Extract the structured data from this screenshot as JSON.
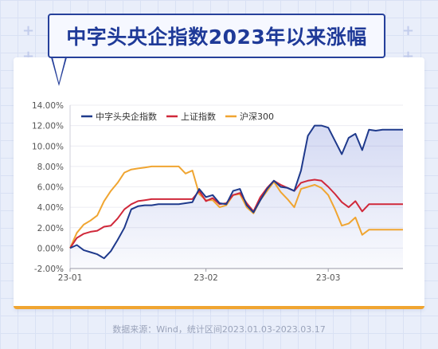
{
  "title": "中字头央企指数2023年以来涨幅",
  "footer": "数据来源：Wind，统计区间2023.01.03-2023.03.17",
  "chart_data": {
    "type": "line",
    "ylim": [
      -2,
      14
    ],
    "yticks": [
      "14.00%",
      "12.00%",
      "10.00%",
      "8.00%",
      "6.00%",
      "4.00%",
      "2.00%",
      "0.00%",
      "-2.00%"
    ],
    "ytick_values": [
      14,
      12,
      10,
      8,
      6,
      4,
      2,
      0,
      -2
    ],
    "xticks": [
      {
        "label": "23-01",
        "x": 0
      },
      {
        "label": "23-02",
        "x": 20
      },
      {
        "label": "23-03",
        "x": 38
      }
    ],
    "x": [
      0,
      1,
      2,
      3,
      4,
      5,
      6,
      7,
      8,
      9,
      10,
      11,
      12,
      13,
      14,
      15,
      16,
      17,
      18,
      19,
      20,
      21,
      22,
      23,
      24,
      25,
      26,
      27,
      28,
      29,
      30,
      31,
      32,
      33,
      34,
      35,
      36,
      37,
      38,
      39,
      40,
      41,
      42,
      43,
      44,
      45,
      46,
      47,
      48,
      49
    ],
    "legend_position": "top-left",
    "series": [
      {
        "name": "中字头央企指数",
        "color": "#1f3a8c",
        "values": [
          0,
          0.3,
          -0.2,
          -0.4,
          -0.6,
          -1.0,
          -0.3,
          0.8,
          2.0,
          3.8,
          4.1,
          4.2,
          4.2,
          4.3,
          4.3,
          4.3,
          4.3,
          4.4,
          4.5,
          5.8,
          5.0,
          5.2,
          4.4,
          4.3,
          5.6,
          5.8,
          4.2,
          3.5,
          4.7,
          5.8,
          6.6,
          6.0,
          5.9,
          5.6,
          7.6,
          11.0,
          12.0,
          12.0,
          11.8,
          10.5,
          9.2,
          10.8,
          11.2,
          9.6,
          11.6,
          11.5,
          11.6,
          11.6,
          11.6,
          11.6
        ]
      },
      {
        "name": "上证指数",
        "color": "#d0283a",
        "values": [
          0,
          1.0,
          1.4,
          1.6,
          1.7,
          2.1,
          2.2,
          2.9,
          3.8,
          4.3,
          4.6,
          4.7,
          4.8,
          4.8,
          4.8,
          4.8,
          4.8,
          4.8,
          4.8,
          5.6,
          4.6,
          4.9,
          4.3,
          4.4,
          5.2,
          5.4,
          4.4,
          3.6,
          5.0,
          5.9,
          6.6,
          6.2,
          5.9,
          5.6,
          6.4,
          6.6,
          6.7,
          6.6,
          6.0,
          5.3,
          4.5,
          4.0,
          4.6,
          3.6,
          4.3,
          4.3,
          4.3,
          4.3,
          4.3,
          4.3
        ]
      },
      {
        "name": "沪深300",
        "color": "#f0a531",
        "values": [
          0,
          1.5,
          2.3,
          2.7,
          3.2,
          4.6,
          5.6,
          6.4,
          7.4,
          7.7,
          7.8,
          7.9,
          8.0,
          8.0,
          8.0,
          8.0,
          8.0,
          7.3,
          7.6,
          5.3,
          4.7,
          4.7,
          4.0,
          4.2,
          5.2,
          5.3,
          4.0,
          3.4,
          4.7,
          5.6,
          6.5,
          5.5,
          4.8,
          4.0,
          5.8,
          6.0,
          6.2,
          5.9,
          5.2,
          3.8,
          2.2,
          2.4,
          3.0,
          1.3,
          1.8,
          1.8,
          1.8,
          1.8,
          1.8,
          1.8
        ]
      }
    ]
  }
}
